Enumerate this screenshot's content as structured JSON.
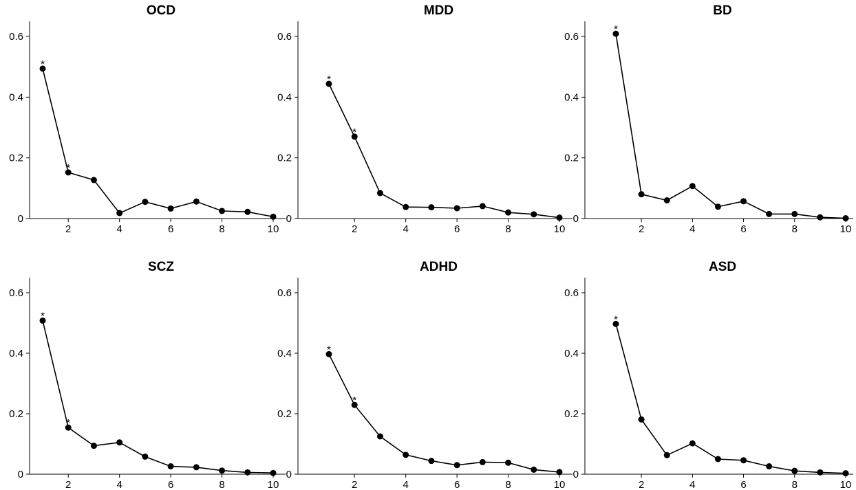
{
  "chart_data": [
    {
      "type": "line",
      "title": "OCD",
      "x": [
        1,
        2,
        3,
        4,
        5,
        6,
        7,
        8,
        9,
        10
      ],
      "y": [
        0.494,
        0.152,
        0.127,
        0.018,
        0.055,
        0.033,
        0.056,
        0.025,
        0.022,
        0.006
      ],
      "significant": [
        1,
        2
      ],
      "xticks": [
        2,
        4,
        6,
        8,
        10
      ],
      "yticks": [
        0,
        0.2,
        0.4,
        0.6
      ],
      "ytick_labels": [
        "0",
        "0.2",
        "0.4",
        "0.6"
      ],
      "xlim": [
        0.5,
        10.5
      ],
      "ylim": [
        0,
        0.65
      ]
    },
    {
      "type": "line",
      "title": "MDD",
      "x": [
        1,
        2,
        3,
        4,
        5,
        6,
        7,
        8,
        9,
        10
      ],
      "y": [
        0.444,
        0.27,
        0.084,
        0.038,
        0.037,
        0.034,
        0.041,
        0.02,
        0.014,
        0.003
      ],
      "significant": [
        1,
        2
      ],
      "xticks": [
        2,
        4,
        6,
        8,
        10
      ],
      "yticks": [
        0,
        0.2,
        0.4,
        0.6
      ],
      "ytick_labels": [
        "0",
        "0.2",
        "0.4",
        "0.6"
      ],
      "xlim": [
        0.5,
        10.5
      ],
      "ylim": [
        0,
        0.65
      ]
    },
    {
      "type": "line",
      "title": "BD",
      "x": [
        1,
        2,
        3,
        4,
        5,
        6,
        7,
        8,
        9,
        10
      ],
      "y": [
        0.609,
        0.08,
        0.06,
        0.107,
        0.039,
        0.057,
        0.015,
        0.015,
        0.004,
        0.001
      ],
      "significant": [
        1
      ],
      "xticks": [
        2,
        4,
        6,
        8,
        10
      ],
      "yticks": [
        0,
        0.2,
        0.4,
        0.6
      ],
      "ytick_labels": [
        "0",
        "0.2",
        "0.4",
        "0.6"
      ],
      "xlim": [
        0.5,
        10.5
      ],
      "ylim": [
        0,
        0.65
      ]
    },
    {
      "type": "line",
      "title": "SCZ",
      "x": [
        1,
        2,
        3,
        4,
        5,
        6,
        7,
        8,
        9,
        10
      ],
      "y": [
        0.508,
        0.154,
        0.094,
        0.105,
        0.058,
        0.026,
        0.023,
        0.012,
        0.006,
        0.004
      ],
      "significant": [
        1,
        2
      ],
      "xticks": [
        2,
        4,
        6,
        8,
        10
      ],
      "yticks": [
        0,
        0.2,
        0.4,
        0.6
      ],
      "ytick_labels": [
        "0",
        "0.2",
        "0.4",
        "0.6"
      ],
      "xlim": [
        0.5,
        10.5
      ],
      "ylim": [
        0,
        0.65
      ]
    },
    {
      "type": "line",
      "title": "ADHD",
      "x": [
        1,
        2,
        3,
        4,
        5,
        6,
        7,
        8,
        9,
        10
      ],
      "y": [
        0.397,
        0.229,
        0.125,
        0.064,
        0.044,
        0.03,
        0.04,
        0.038,
        0.015,
        0.007
      ],
      "significant": [
        1,
        2
      ],
      "xticks": [
        2,
        4,
        6,
        8,
        10
      ],
      "yticks": [
        0,
        0.2,
        0.4,
        0.6
      ],
      "ytick_labels": [
        "0",
        "0.2",
        "0.4",
        "0.6"
      ],
      "xlim": [
        0.5,
        10.5
      ],
      "ylim": [
        0,
        0.65
      ]
    },
    {
      "type": "line",
      "title": "ASD",
      "x": [
        1,
        2,
        3,
        4,
        5,
        6,
        7,
        8,
        9,
        10
      ],
      "y": [
        0.497,
        0.181,
        0.063,
        0.102,
        0.05,
        0.046,
        0.026,
        0.011,
        0.006,
        0.003
      ],
      "significant": [
        1
      ],
      "xticks": [
        2,
        4,
        6,
        8,
        10
      ],
      "yticks": [
        0,
        0.2,
        0.4,
        0.6
      ],
      "ytick_labels": [
        "0",
        "0.2",
        "0.4",
        "0.6"
      ],
      "xlim": [
        0.5,
        10.5
      ],
      "ylim": [
        0,
        0.65
      ]
    }
  ],
  "significance_marker": "*"
}
